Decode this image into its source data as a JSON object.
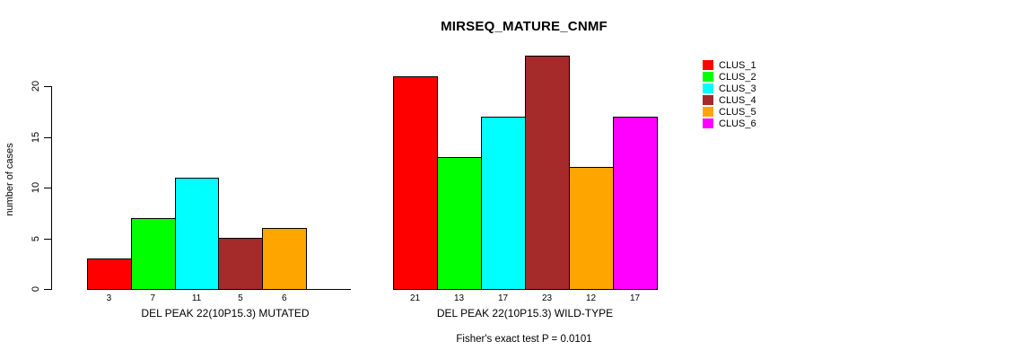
{
  "chart_data": {
    "type": "bar",
    "title": "MIRSEQ_MATURE_CNMF",
    "ylabel": "number of cases",
    "ylim": [
      0,
      23
    ],
    "yticks": [
      0,
      5,
      10,
      15,
      20
    ],
    "grid": false,
    "legend_position": "right",
    "clusters": [
      {
        "name": "CLUS_1",
        "color": "#FF0000"
      },
      {
        "name": "CLUS_2",
        "color": "#00FF00"
      },
      {
        "name": "CLUS_3",
        "color": "#00FFFF"
      },
      {
        "name": "CLUS_4",
        "color": "#A52A2A"
      },
      {
        "name": "CLUS_5",
        "color": "#FFA500"
      },
      {
        "name": "CLUS_6",
        "color": "#FF00FF"
      }
    ],
    "groups": [
      {
        "label": "DEL PEAK 22(10P15.3) MUTATED",
        "values": [
          3,
          7,
          11,
          5,
          6,
          0
        ],
        "bar_labels": [
          "3",
          "7",
          "11",
          "5",
          "6",
          ""
        ]
      },
      {
        "label": "DEL PEAK 22(10P15.3) WILD-TYPE",
        "values": [
          21,
          13,
          17,
          23,
          12,
          17
        ],
        "bar_labels": [
          "21",
          "13",
          "17",
          "23",
          "12",
          "17"
        ]
      }
    ],
    "annotation": "Fisher's exact test P = 0.0101",
    "axis_color": "#000000",
    "bar_border_color": "#000000"
  }
}
